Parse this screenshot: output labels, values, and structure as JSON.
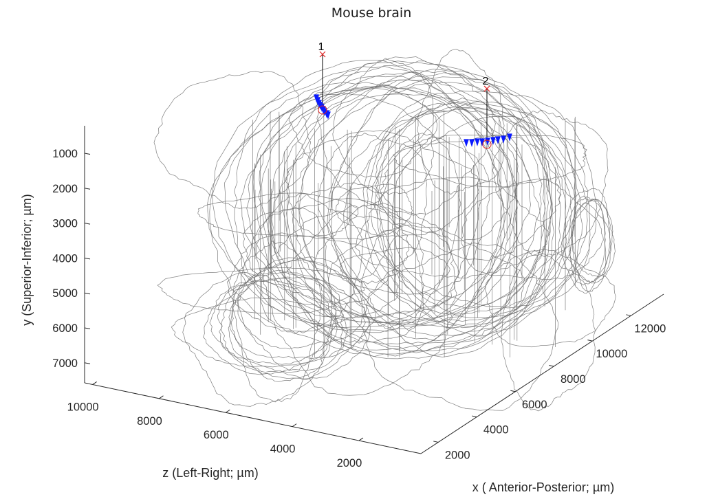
{
  "chart_data": {
    "type": "3d-line-scatter",
    "title": "Mouse brain",
    "axes": {
      "y": {
        "label": "y (Superior-Inferior; µm)",
        "ticks": [
          "1000",
          "2000",
          "3000",
          "4000",
          "5000",
          "6000",
          "7000"
        ],
        "direction": "reversed"
      },
      "z": {
        "label": "z (Left-Right; µm)",
        "ticks": [
          "10000",
          "8000",
          "6000",
          "4000",
          "2000"
        ]
      },
      "x": {
        "label": "x ( Anterior-Posterior; µm)",
        "ticks": [
          "2000",
          "4000",
          "6000",
          "8000",
          "10000",
          "12000"
        ]
      }
    },
    "grid": false,
    "background": "#ffffff",
    "series": [
      {
        "name": "brain outline mesh",
        "kind": "wireframe",
        "color": "#6e6e6e"
      },
      {
        "name": "probe 1",
        "label": "1",
        "entry_marker": "x",
        "marker_color": "#e02020",
        "contacts_color": "#0a1aff"
      },
      {
        "name": "probe 2",
        "label": "2",
        "entry_marker": "x",
        "marker_color": "#e02020",
        "contacts_color": "#0a1aff"
      }
    ],
    "annotations": [
      "1",
      "2"
    ]
  }
}
